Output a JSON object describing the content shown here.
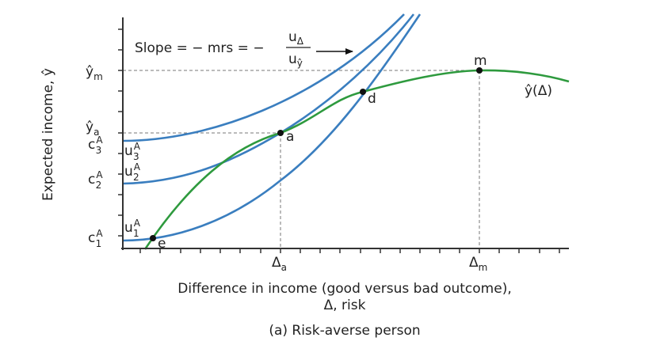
{
  "figure": {
    "y_axis_label": "Expected income, ŷ",
    "x_axis_label_line1": "Difference in income (good versus bad outcome),",
    "x_axis_label_line2": "Δ, risk",
    "caption": "(a) Risk-averse person",
    "slope_text": "Slope = − mrs = −",
    "slope_num": "u",
    "slope_num_sub": "Δ",
    "slope_den": "u",
    "slope_den_sub": "ŷ",
    "y_ticks": {
      "ym": {
        "main": "ŷ",
        "sub": "m"
      },
      "ya": {
        "main": "ŷ",
        "sub": "a"
      },
      "c3": {
        "main": "c",
        "sup": "A",
        "sub": "3"
      },
      "c2": {
        "main": "c",
        "sup": "A",
        "sub": "2"
      },
      "c1": {
        "main": "c",
        "sup": "A",
        "sub": "1"
      }
    },
    "x_ticks": {
      "da": {
        "main": "Δ",
        "sub": "a"
      },
      "dm": {
        "main": "Δ",
        "sub": "m"
      }
    },
    "curve_labels": {
      "u3": {
        "main": "u",
        "sup": "A",
        "sub": "3"
      },
      "u2": {
        "main": "u",
        "sup": "A",
        "sub": "2"
      },
      "u1": {
        "main": "u",
        "sup": "A",
        "sub": "1"
      },
      "yhat": "ŷ(Δ)"
    },
    "points": {
      "a": "a",
      "d": "d",
      "e": "e",
      "m": "m"
    },
    "colors": {
      "indifference_curves": "#3a7ebf",
      "frontier": "#2e9a3e",
      "axes": "#333333"
    }
  }
}
